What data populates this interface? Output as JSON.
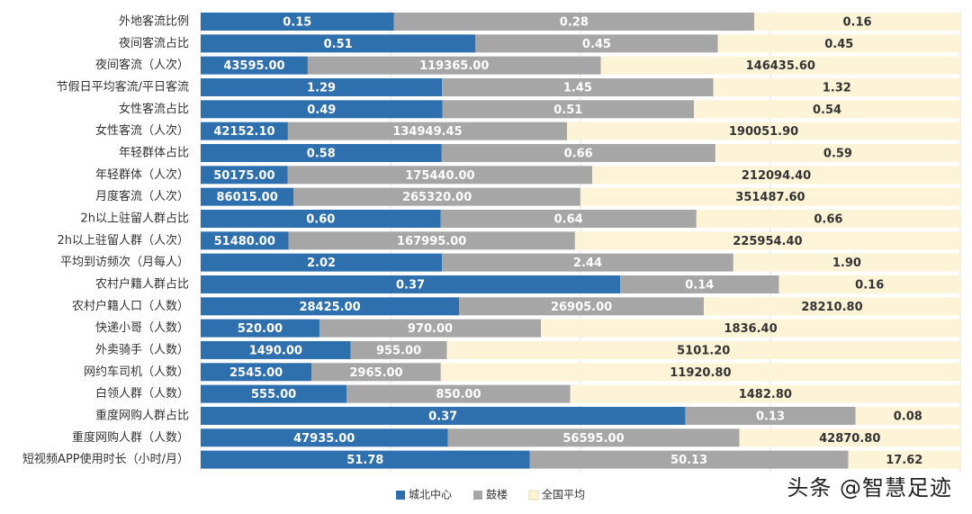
{
  "chart_data": {
    "type": "bar",
    "orientation": "horizontal",
    "stacked": "percent",
    "title": "",
    "xlabel": "",
    "ylabel": "",
    "categories": [
      "外地客流比例",
      "夜间客流占比",
      "夜间客流（人次）",
      "节假日平均客流/平日客流",
      "女性客流占比",
      "女性客流（人次）",
      "年轻群体占比",
      "年轻群体（人次）",
      "月度客流（人次）",
      "2h以上驻留人群占比",
      "2h以上驻留人群（人次）",
      "平均到访频次（月每人）",
      "农村户籍人群占比",
      "农村户籍人口（人数）",
      "快递小哥（人数）",
      "外卖骑手（人数）",
      "网约车司机（人数）",
      "白领人群（人数）",
      "重度网购人群占比",
      "重度网购人群（人数）",
      "短视频APP使用时长（小时/月）"
    ],
    "series": [
      {
        "name": "城北中心",
        "color": "#2e6fad",
        "values": [
          "0.15",
          "0.51",
          "43595.00",
          "1.29",
          "0.49",
          "42152.10",
          "0.58",
          "50175.00",
          "86015.00",
          "0.60",
          "51480.00",
          "2.02",
          "0.37",
          "28425.00",
          "520.00",
          "1490.00",
          "2545.00",
          "555.00",
          "0.37",
          "47935.00",
          "51.78"
        ]
      },
      {
        "name": "鼓楼",
        "color": "#a6a6a6",
        "values": [
          "0.28",
          "0.45",
          "119365.00",
          "1.45",
          "0.51",
          "134949.45",
          "0.66",
          "175440.00",
          "265320.00",
          "0.64",
          "167995.00",
          "2.44",
          "0.14",
          "26905.00",
          "970.00",
          "955.00",
          "2965.00",
          "850.00",
          "0.13",
          "56595.00",
          "50.13"
        ]
      },
      {
        "name": "全国平均",
        "color": "#fdf3d6",
        "values": [
          "0.16",
          "0.45",
          "146435.60",
          "1.32",
          "0.54",
          "190051.90",
          "0.59",
          "212094.40",
          "351487.60",
          "0.66",
          "225954.40",
          "1.90",
          "0.16",
          "28210.80",
          "1836.40",
          "5101.20",
          "11920.80",
          "1482.80",
          "0.08",
          "42870.80",
          "17.62"
        ]
      }
    ],
    "xlim": [
      0,
      1
    ],
    "grid": true,
    "legend": "bottom"
  },
  "watermark": "头条 @智慧足迹"
}
